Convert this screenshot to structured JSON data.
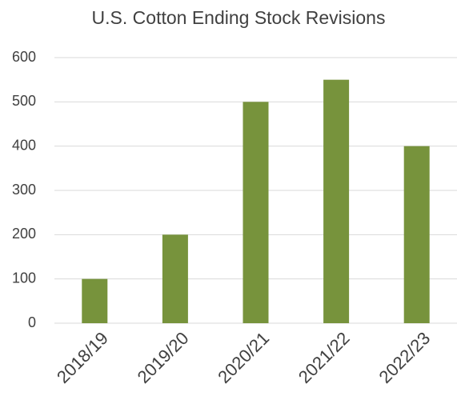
{
  "chart_data": {
    "type": "bar",
    "title": "U.S. Cotton Ending Stock Revisions",
    "categories": [
      "2018/19",
      "2019/20",
      "2020/21",
      "2021/22",
      "2022/23"
    ],
    "values": [
      100,
      200,
      500,
      550,
      400
    ],
    "color": "#77933c",
    "ylim": [
      0,
      600
    ],
    "yticks": [
      0,
      100,
      200,
      300,
      400,
      500,
      600
    ],
    "grid": true
  }
}
